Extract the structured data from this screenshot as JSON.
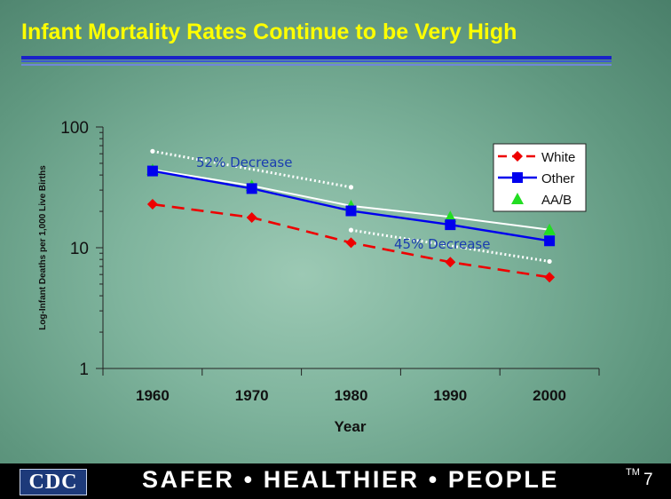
{
  "slide": {
    "title": "Infant Mortality Rates Continue to be Very High"
  },
  "footer": {
    "logo_text": "CDC",
    "tagline": "SAFER • HEALTHIER • PEOPLE",
    "trademark": "TM",
    "page_number": "7"
  },
  "colors": {
    "title": "#ffff00",
    "white_series": "#ee0000",
    "other_series": "#0000ee",
    "aab_series": "#22dd22"
  },
  "chart_data": {
    "type": "line",
    "title": "",
    "xlabel": "Year",
    "ylabel": "Log-Infant Deaths per 1,000 Live Births",
    "y_scale": "log",
    "ylim": [
      1,
      100
    ],
    "y_ticks": [
      "100",
      "10",
      "1"
    ],
    "categories": [
      "1960",
      "1970",
      "1980",
      "1990",
      "2000"
    ],
    "series": [
      {
        "name": "White",
        "values": [
          22.9,
          17.8,
          11.0,
          7.6,
          5.7
        ],
        "color": "#ee0000",
        "marker": "diamond",
        "line": "dashed"
      },
      {
        "name": "Other",
        "values": [
          43.2,
          30.9,
          20.2,
          15.5,
          11.4
        ],
        "color": "#0000ee",
        "marker": "square",
        "line": "solid"
      },
      {
        "name": "AA/B",
        "values": [
          44.3,
          32.6,
          22.2,
          18.0,
          14.1
        ],
        "color": "#22dd22",
        "marker": "triangle",
        "line": "solid"
      }
    ],
    "reference_lines": [
      {
        "x": [
          "1960",
          "1980"
        ],
        "values": [
          63.0,
          31.7
        ]
      },
      {
        "x": [
          "1980",
          "2000"
        ],
        "values": [
          14.0,
          7.7
        ]
      }
    ],
    "annotations": [
      {
        "text": "52% Decrease",
        "near": "1960-1980"
      },
      {
        "text": "45% Decrease",
        "near": "1980-2000"
      }
    ],
    "legend": {
      "placement": "top-right"
    },
    "grid": false
  }
}
